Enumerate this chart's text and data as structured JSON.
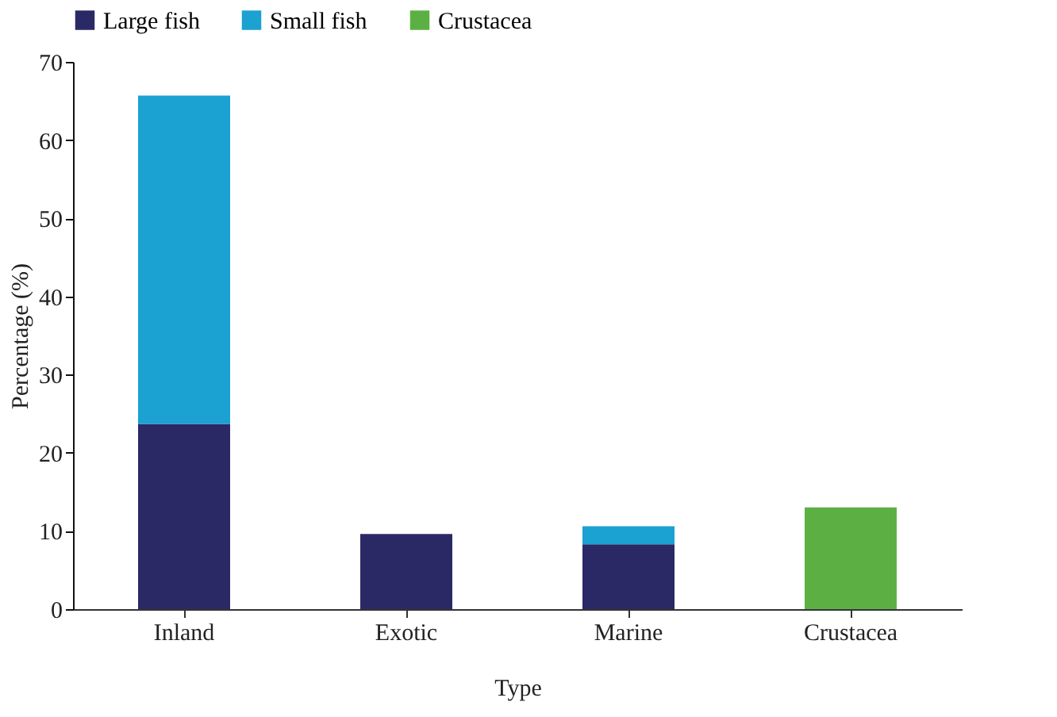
{
  "chart_data": {
    "type": "bar",
    "stacked": true,
    "xlabel": "Type",
    "ylabel": "Percentage (%)",
    "categories": [
      "Inland",
      "Exotic",
      "Marine",
      "Crustacea"
    ],
    "series": [
      {
        "name": "Large fish",
        "color": "#2b2965",
        "values": [
          23.7,
          9.6,
          8.3,
          null
        ]
      },
      {
        "name": "Small fish",
        "color": "#1ba1d2",
        "values": [
          42.0,
          null,
          2.3,
          null
        ]
      },
      {
        "name": "Crustacea",
        "color": "#5cb043",
        "values": [
          null,
          null,
          null,
          13.0
        ]
      }
    ],
    "ylim": [
      0,
      70
    ],
    "yticks": [
      0,
      10,
      20,
      30,
      40,
      50,
      60,
      70
    ],
    "grid": false,
    "legend": "top"
  }
}
